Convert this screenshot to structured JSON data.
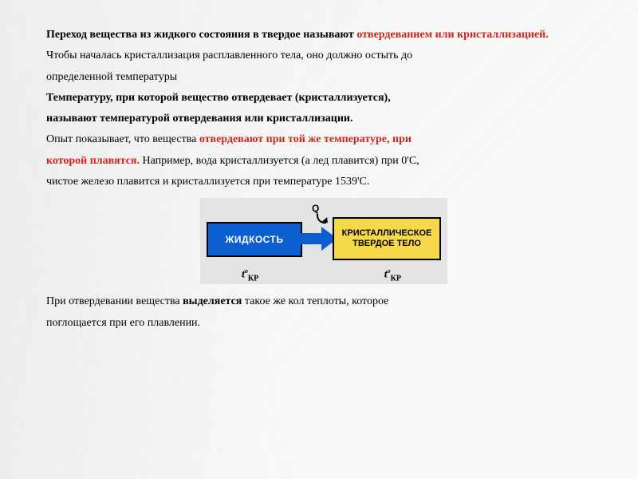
{
  "p1_lead": "Переход вещества из жидкого состояния в твердое называют ",
  "p1_red": "отвердеванием или кристаллизацией.",
  "p2": "Чтобы началась кристаллизация расплавленного тела, оно должно остыть до",
  "p3": "определенной температуры",
  "p4": "Температуру, при которой вещество отвердевает (кристаллизуется),",
  "p5": "называют температурой отвердевания или кристаллизации.",
  "p6a": "Опыт показывает, что вещества ",
  "p6b": "отвердевают при той же температуре, при",
  "p7a": "которой плавятся.",
  "p7b": " Например, вода кристаллизуется (а лед плавится) при 0'С,",
  "p8": "чистое железо плавится и кристаллизуется при температуре 1539'С.",
  "diagram": {
    "left_box": "ЖИДКОСТЬ",
    "right_box_l1": "КРИСТАЛЛИЧЕСКОЕ",
    "right_box_l2": "ТВЕРДОЕ ТЕЛО",
    "q_label": "Q",
    "t_label": "t",
    "t_sub": "КР",
    "t_sup": "o",
    "colors": {
      "blue": "#0a5ed0",
      "yellow": "#f6d94a",
      "bg": "#e3e3e3"
    }
  },
  "p9a": "При отвердевании вещества ",
  "p9b": "выделяется",
  "p9c": " такое же кол теплоты, которое",
  "p10": "поглощается при его плавлении."
}
